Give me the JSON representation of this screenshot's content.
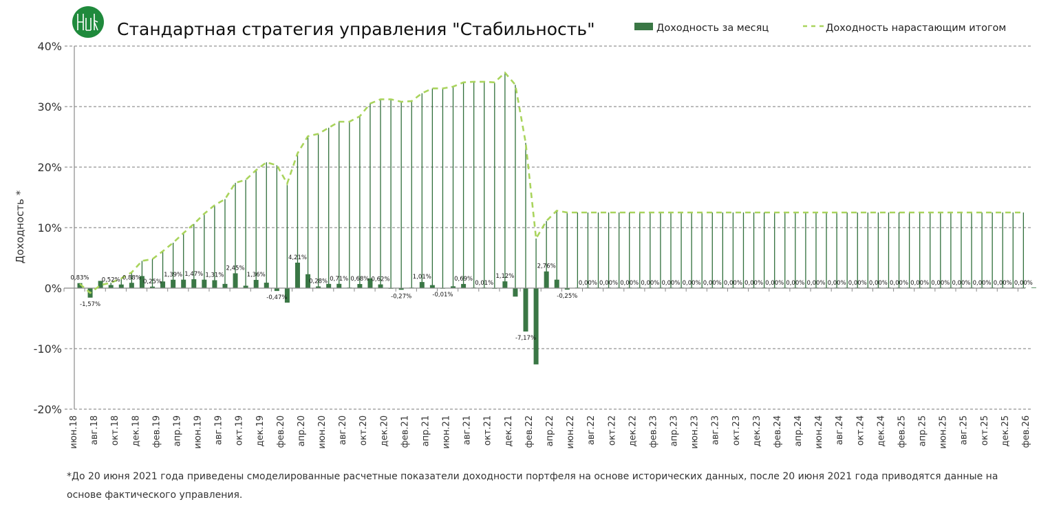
{
  "title": "Стандартная стратегия управления \"Стабильность\"",
  "footnote": "*До 20 июня 2021 года приведены смоделированные расчетные показатели доходности портфеля на основе исторических данных, после 20 июня 2021 года приводятся данные на основе фактического управления.",
  "colors": {
    "bar": "#3a7745",
    "drop": "#2f6e3a",
    "cumulative": "#a9d45c",
    "logo": "#1f8a3c"
  },
  "chart_data": {
    "type": "bar+line",
    "title": "Стандартная стратегия управления \"Стабильность\"",
    "ylabel": "Доходность *",
    "xlabel": "",
    "ylim": [
      -20,
      40
    ],
    "yticks": [
      "-20%",
      "-10%",
      "0%",
      "10%",
      "20%",
      "30%",
      "40%"
    ],
    "ytick_values": [
      -20,
      -10,
      0,
      10,
      20,
      30,
      40
    ],
    "grid": true,
    "legend_position": "top-right",
    "legend": [
      "Доходность за месяц",
      "Доходность нарастающим итогом"
    ],
    "xtick_labels": [
      "июн.18",
      "авг.18",
      "окт.18",
      "дек.18",
      "фев.19",
      "апр.19",
      "июн.19",
      "авг.19",
      "окт.19",
      "дек.19",
      "фев.20",
      "апр.20",
      "июн.20",
      "авг.20",
      "окт.20",
      "дек.20",
      "фев.21",
      "апр.21",
      "июн.21",
      "авг.21",
      "окт.21",
      "дек.21",
      "фев.22",
      "апр.22",
      "июн.22",
      "авг.22",
      "окт.22",
      "дек.22",
      "фев.23",
      "апр.23",
      "июн.23",
      "авг.23",
      "окт.23",
      "дек.23",
      "фев.24",
      "апр.24",
      "июн.24",
      "авг.24",
      "окт.24",
      "дек.24",
      "фев.25",
      "апр.25",
      "июн.25",
      "авг.25",
      "окт.25",
      "дек.25",
      "фев.26"
    ],
    "series": [
      {
        "name": "Доходность за месяц",
        "type": "bar",
        "values": [
          0.83,
          -1.57,
          1.2,
          0.52,
          0.6,
          0.88,
          2.0,
          0.25,
          1.1,
          1.39,
          1.4,
          1.47,
          1.4,
          1.31,
          0.7,
          2.45,
          0.4,
          1.36,
          0.9,
          -0.47,
          -2.4,
          4.21,
          2.3,
          0.28,
          0.7,
          0.71,
          0.05,
          0.68,
          1.6,
          0.62,
          -0.1,
          -0.27,
          0.0,
          1.01,
          0.5,
          -0.01,
          0.3,
          0.69,
          0.0,
          0.01,
          -0.1,
          1.12,
          -1.4,
          -7.17,
          -12.6,
          2.76,
          1.4,
          -0.25,
          0,
          0,
          0,
          0,
          0,
          0,
          0,
          0,
          0,
          0,
          0,
          0,
          0,
          0,
          0,
          0,
          0,
          0,
          0,
          0,
          0,
          0,
          0,
          0,
          0,
          0,
          0,
          0,
          0,
          0,
          0,
          0,
          0,
          0,
          0,
          0,
          0,
          0,
          0,
          0,
          0,
          0,
          0,
          0,
          0,
          0
        ]
      },
      {
        "name": "Доходность нарастающим итогом",
        "type": "line",
        "values": [
          0.7,
          -0.8,
          0.5,
          0.9,
          1.6,
          2.6,
          4.5,
          4.8,
          6.1,
          7.5,
          9.1,
          10.6,
          12.3,
          13.7,
          14.7,
          17.4,
          17.9,
          19.5,
          20.8,
          20.3,
          17.3,
          22.3,
          25.1,
          25.5,
          26.5,
          27.5,
          27.5,
          28.4,
          30.5,
          31.2,
          31.2,
          30.8,
          30.9,
          32.2,
          33.0,
          33.0,
          33.3,
          34.0,
          34.1,
          34.1,
          34.0,
          35.6,
          33.6,
          24.0,
          8.2,
          11.1,
          12.8,
          12.5,
          12.5,
          12.5,
          12.5,
          12.5,
          12.5,
          12.5,
          12.5,
          12.5,
          12.5,
          12.5,
          12.5,
          12.5,
          12.5,
          12.5,
          12.5,
          12.5,
          12.5,
          12.5,
          12.5,
          12.5,
          12.5,
          12.5,
          12.5,
          12.5,
          12.5,
          12.5,
          12.5,
          12.5,
          12.5,
          12.5,
          12.5,
          12.5,
          12.5,
          12.5,
          12.5,
          12.5,
          12.5,
          12.5,
          12.5,
          12.5,
          12.5,
          12.5,
          12.5,
          12.5
        ]
      }
    ],
    "data_labels": [
      {
        "i": 0,
        "text": "0,83%"
      },
      {
        "i": 1,
        "text": "-1,57%"
      },
      {
        "i": 3,
        "text": "0,52%"
      },
      {
        "i": 5,
        "text": "0,88%"
      },
      {
        "i": 7,
        "text": "0,25%"
      },
      {
        "i": 9,
        "text": "1,39%"
      },
      {
        "i": 11,
        "text": "1,47%"
      },
      {
        "i": 13,
        "text": "1,31%"
      },
      {
        "i": 15,
        "text": "2,45%"
      },
      {
        "i": 17,
        "text": "1,36%"
      },
      {
        "i": 19,
        "text": "-0,47%"
      },
      {
        "i": 21,
        "text": "4,21%"
      },
      {
        "i": 23,
        "text": "0,28%"
      },
      {
        "i": 25,
        "text": "0,71%"
      },
      {
        "i": 27,
        "text": "0,68%"
      },
      {
        "i": 29,
        "text": "0,62%"
      },
      {
        "i": 31,
        "text": "-0,27%"
      },
      {
        "i": 33,
        "text": "1,01%"
      },
      {
        "i": 35,
        "text": "-0,01%"
      },
      {
        "i": 37,
        "text": "0,69%"
      },
      {
        "i": 39,
        "text": "0,01%"
      },
      {
        "i": 41,
        "text": "1,12%"
      },
      {
        "i": 43,
        "text": "-7,17%"
      },
      {
        "i": 45,
        "text": "2,76%"
      },
      {
        "i": 47,
        "text": "-0,25%"
      },
      {
        "i": 49,
        "text": "0,00%"
      },
      {
        "i": 51,
        "text": "0,00%"
      },
      {
        "i": 53,
        "text": "0,00%"
      },
      {
        "i": 55,
        "text": "0,00%"
      },
      {
        "i": 57,
        "text": "0,00%"
      },
      {
        "i": 59,
        "text": "0,00%"
      },
      {
        "i": 61,
        "text": "0,00%"
      },
      {
        "i": 63,
        "text": "0,00%"
      },
      {
        "i": 65,
        "text": "0,00%"
      },
      {
        "i": 67,
        "text": "0,00%"
      },
      {
        "i": 69,
        "text": "0,00%"
      },
      {
        "i": 71,
        "text": "0,00%"
      },
      {
        "i": 73,
        "text": "0,00%"
      },
      {
        "i": 75,
        "text": "0,00%"
      },
      {
        "i": 77,
        "text": "0,00%"
      },
      {
        "i": 79,
        "text": "0,00%"
      },
      {
        "i": 81,
        "text": "0,00%"
      },
      {
        "i": 83,
        "text": "0,00%"
      },
      {
        "i": 85,
        "text": "0,00%"
      },
      {
        "i": 87,
        "text": "0,00%"
      },
      {
        "i": 89,
        "text": "0,00%"
      },
      {
        "i": 91,
        "text": "0,00%"
      }
    ]
  }
}
